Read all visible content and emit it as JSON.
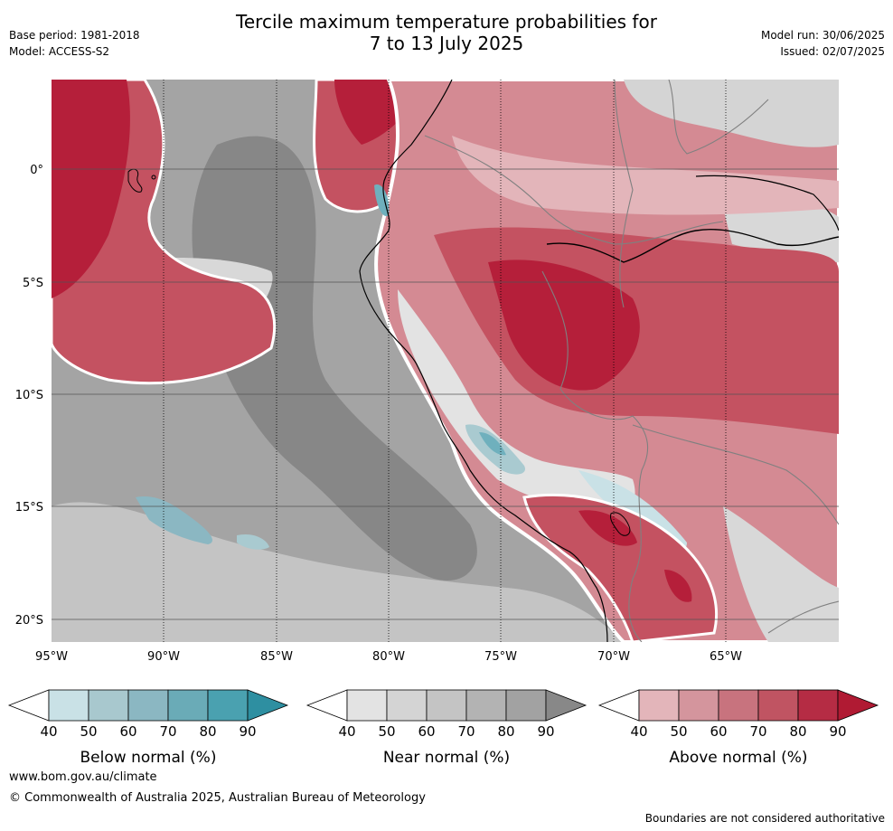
{
  "header": {
    "title_line1": "Tercile maximum temperature probabilities for",
    "title_line2": "7 to 13 July 2025",
    "base_period": "Base period: 1981-2018",
    "model": "Model: ACCESS-S2",
    "model_run": "Model run: 30/06/2025",
    "issued": "Issued: 02/07/2025"
  },
  "map": {
    "lon_labels": [
      "95°W",
      "90°W",
      "85°W",
      "80°W",
      "75°W",
      "70°W",
      "65°W"
    ],
    "lat_labels": [
      "0°",
      "5°S",
      "10°S",
      "15°S",
      "20°S"
    ],
    "colors": {
      "ocean_gray_light": "#c9c9c9",
      "gray_mid": "#a4a4a4",
      "gray_dark": "#878787",
      "red_dark": "#b51f3a",
      "red_mid": "#c45261",
      "red_light": "#d48a93",
      "red_pale": "#e3b5ba",
      "blue_light": "#a9cad0",
      "blue_mid": "#6fb0bd"
    }
  },
  "colorbars": [
    {
      "label": "Below normal (%)",
      "ticks": [
        "40",
        "50",
        "60",
        "70",
        "80",
        "90"
      ],
      "colors": [
        "#ffffff",
        "#c9e1e6",
        "#a8c8ce",
        "#8bb7c2",
        "#6aabb7",
        "#4aa1b0",
        "#2e8fa1"
      ]
    },
    {
      "label": "Near normal (%)",
      "ticks": [
        "40",
        "50",
        "60",
        "70",
        "80",
        "90"
      ],
      "colors": [
        "#ffffff",
        "#e3e3e3",
        "#d4d4d4",
        "#c4c4c4",
        "#b3b3b3",
        "#a2a2a2",
        "#888888"
      ]
    },
    {
      "label": "Above normal (%)",
      "ticks": [
        "40",
        "50",
        "60",
        "70",
        "80",
        "90"
      ],
      "colors": [
        "#ffffff",
        "#e3b5ba",
        "#d4959d",
        "#c8737e",
        "#c05462",
        "#b52c44",
        "#b01a33"
      ]
    }
  ],
  "footer": {
    "url": "www.bom.gov.au/climate",
    "copyright": "© Commonwealth of Australia 2025, Australian Bureau of Meteorology",
    "disclaimer": "Boundaries are not considered authoritative"
  }
}
